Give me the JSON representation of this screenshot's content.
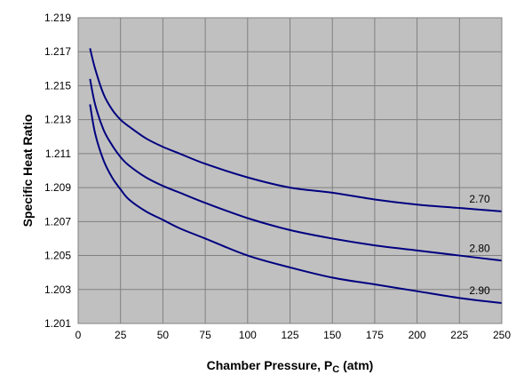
{
  "chart_data": {
    "type": "line",
    "xlabel_main": "Chamber Pressure, P",
    "xlabel_sub": "C",
    "xlabel_unit": " (atm)",
    "ylabel": "Specific Heat Ratio",
    "xlim": [
      0,
      250
    ],
    "ylim": [
      1.201,
      1.219
    ],
    "x_ticks": [
      "0",
      "25",
      "50",
      "75",
      "100",
      "125",
      "150",
      "175",
      "200",
      "225",
      "250"
    ],
    "y_ticks": [
      "1.201",
      "1.203",
      "1.205",
      "1.207",
      "1.209",
      "1.211",
      "1.213",
      "1.215",
      "1.217",
      "1.219"
    ],
    "grid": true,
    "plot_background": "#c0c0c0",
    "gridline_color": "#808080",
    "line_color": "#000080",
    "series": [
      {
        "name": "2.70",
        "x": [
          7,
          10,
          15,
          20,
          25,
          30,
          40,
          50,
          60,
          75,
          100,
          125,
          150,
          175,
          200,
          225,
          250
        ],
        "y": [
          1.2172,
          1.216,
          1.2145,
          1.2136,
          1.213,
          1.2126,
          1.2119,
          1.2114,
          1.211,
          1.2104,
          1.2096,
          1.209,
          1.2087,
          1.2083,
          1.208,
          1.2078,
          1.2076
        ]
      },
      {
        "name": "2.80",
        "x": [
          7,
          10,
          15,
          20,
          25,
          30,
          40,
          50,
          60,
          75,
          100,
          125,
          150,
          175,
          200,
          225,
          250
        ],
        "y": [
          1.2154,
          1.2139,
          1.2124,
          1.2115,
          1.2108,
          1.2103,
          1.2096,
          1.2091,
          1.2087,
          1.2081,
          1.2072,
          1.2065,
          1.206,
          1.2056,
          1.2053,
          1.205,
          1.2047
        ]
      },
      {
        "name": "2.90",
        "x": [
          7,
          10,
          15,
          20,
          25,
          30,
          40,
          50,
          60,
          75,
          100,
          125,
          150,
          175,
          200,
          225,
          250
        ],
        "y": [
          1.2139,
          1.2122,
          1.2106,
          1.2096,
          1.2089,
          1.2083,
          1.2076,
          1.2071,
          1.2066,
          1.206,
          1.205,
          1.2043,
          1.2037,
          1.2033,
          1.2029,
          1.2025,
          1.2022
        ]
      }
    ]
  }
}
